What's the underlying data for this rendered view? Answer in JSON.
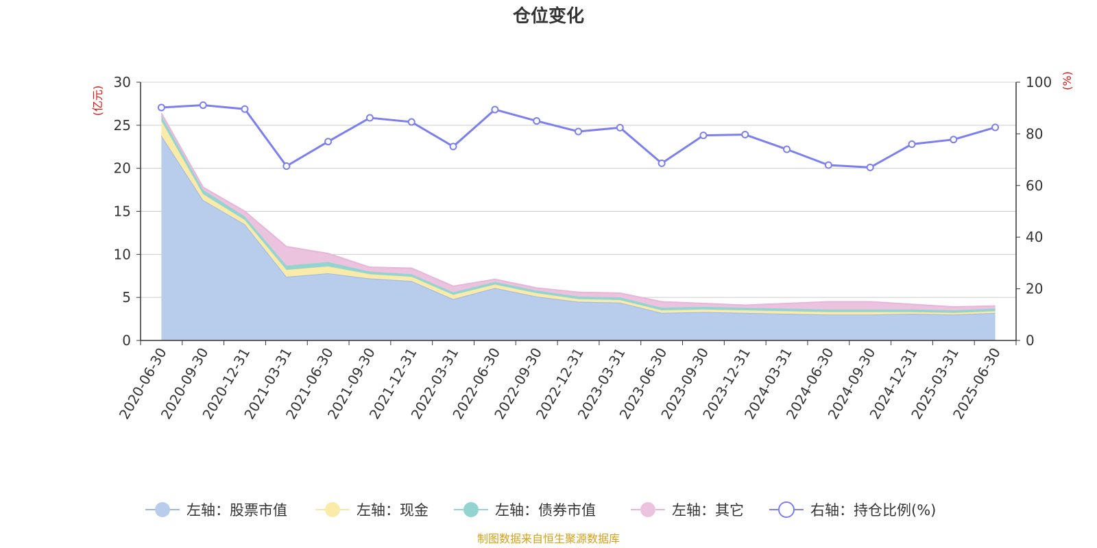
{
  "chart_data": {
    "type": "area",
    "title": "仓位变化",
    "left_unit": "(亿元)",
    "right_unit": "(%)",
    "source": "制图数据来自恒生聚源数据库",
    "categories": [
      "2020-06-30",
      "2020-09-30",
      "2020-12-31",
      "2021-03-31",
      "2021-06-30",
      "2021-09-30",
      "2021-12-31",
      "2022-03-31",
      "2022-06-30",
      "2022-09-30",
      "2022-12-31",
      "2023-03-31",
      "2023-06-30",
      "2023-09-30",
      "2023-12-31",
      "2024-03-31",
      "2024-06-30",
      "2024-09-30",
      "2024-12-31",
      "2025-03-31",
      "2025-06-30"
    ],
    "left_axis": {
      "min": 0,
      "max": 30,
      "ticks": [
        0,
        5,
        10,
        15,
        20,
        25,
        30
      ]
    },
    "right_axis": {
      "min": 0,
      "max": 100,
      "ticks": [
        0,
        20,
        40,
        60,
        80,
        100
      ]
    },
    "grid": true,
    "legend_position": "bottom",
    "stacked_series": [
      {
        "name": "左轴：股票市值",
        "color": "#9db9e3",
        "fill": "#b8cceb",
        "values": [
          23.8,
          16.3,
          13.5,
          7.4,
          7.8,
          7.2,
          6.9,
          4.8,
          6.1,
          5.1,
          4.5,
          4.4,
          3.2,
          3.3,
          3.2,
          3.1,
          3.0,
          3.0,
          3.1,
          3.0,
          3.2
        ]
      },
      {
        "name": "左轴：现金",
        "color": "#fae6a6",
        "fill": "#faeba9",
        "values": [
          1.7,
          0.7,
          0.5,
          0.8,
          0.8,
          0.5,
          0.5,
          0.5,
          0.4,
          0.4,
          0.3,
          0.3,
          0.3,
          0.3,
          0.3,
          0.3,
          0.3,
          0.3,
          0.2,
          0.2,
          0.2
        ]
      },
      {
        "name": "左轴：债券市值",
        "color": "#93d4d1",
        "fill": "#93d4d1",
        "values": [
          0.6,
          0.5,
          0.4,
          0.5,
          0.5,
          0.3,
          0.3,
          0.3,
          0.3,
          0.3,
          0.3,
          0.3,
          0.3,
          0.3,
          0.3,
          0.3,
          0.3,
          0.3,
          0.3,
          0.3,
          0.3
        ]
      },
      {
        "name": "左轴：其它",
        "color": "#e7b6d8",
        "fill": "#ecc3df",
        "values": [
          0.3,
          0.3,
          0.6,
          2.2,
          1.0,
          0.5,
          0.7,
          0.7,
          0.3,
          0.3,
          0.5,
          0.5,
          0.7,
          0.4,
          0.3,
          0.6,
          0.9,
          0.9,
          0.6,
          0.4,
          0.3
        ]
      }
    ],
    "line_series": {
      "name": "右轴：持仓比例(%)",
      "color": "#7b7ff0",
      "values": [
        90.2,
        91.1,
        89.6,
        67.5,
        77.0,
        86.2,
        84.6,
        75.1,
        89.4,
        85.0,
        80.9,
        82.4,
        68.6,
        79.4,
        79.7,
        74.0,
        67.9,
        67.0,
        76.0,
        77.8,
        82.5
      ]
    }
  }
}
